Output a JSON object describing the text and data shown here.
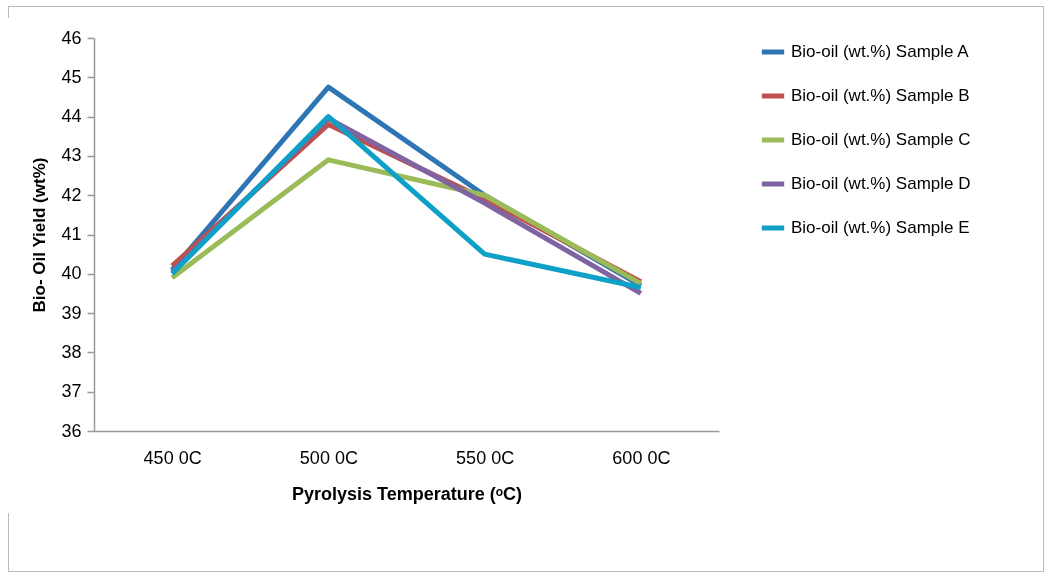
{
  "chart_data": {
    "type": "line",
    "xlabel": "Pyrolysis Temperature (ᵒC)",
    "ylabel": "Bio- Oil Yield (wt%)",
    "categories": [
      "450 0C",
      "500 0C",
      "550 0C",
      "600 0C"
    ],
    "series": [
      {
        "name": "Bio-oil (wt.%) Sample A",
        "color": "#2e75b6",
        "values": [
          40.1,
          44.75,
          42.0,
          39.7
        ]
      },
      {
        "name": "Bio-oil (wt.%) Sample B",
        "color": "#c0504d",
        "values": [
          40.2,
          43.8,
          41.9,
          39.8
        ]
      },
      {
        "name": "Bio-oil (wt.%) Sample C",
        "color": "#9bbb59",
        "values": [
          39.9,
          42.9,
          42.0,
          39.75
        ]
      },
      {
        "name": "Bio-oil (wt.%) Sample D",
        "color": "#8064a2",
        "values": [
          40.05,
          43.95,
          41.8,
          39.5
        ]
      },
      {
        "name": "Bio-oil (wt.%) Sample E",
        "color": "#0ea0c6",
        "values": [
          40.0,
          44.0,
          40.5,
          39.65
        ]
      }
    ],
    "ylim": [
      36,
      46
    ],
    "yticks": [
      36,
      37,
      38,
      39,
      40,
      41,
      42,
      43,
      44,
      45,
      46
    ],
    "grid": false,
    "legend": "right",
    "marker": "none",
    "line_style": "solid"
  }
}
